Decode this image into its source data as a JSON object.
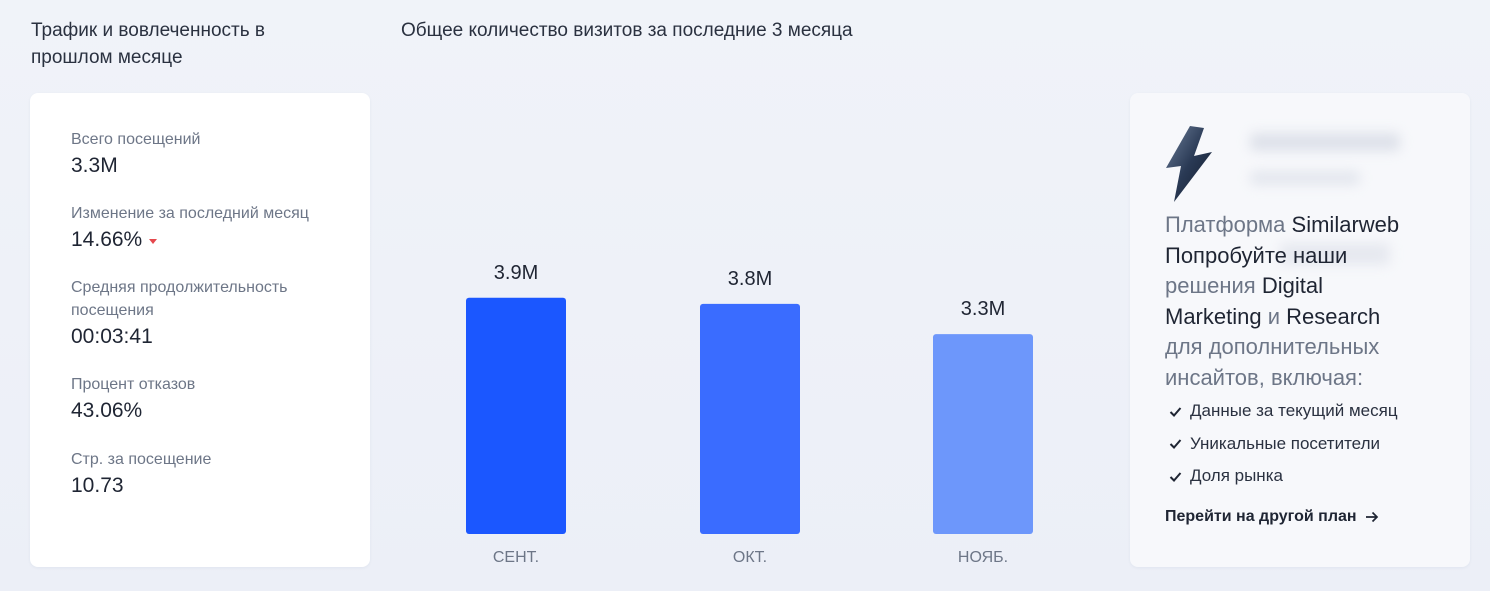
{
  "left_panel": {
    "title": "Трафик и вовлеченность в прошлом месяце",
    "stats": [
      {
        "label": "Всего посещений",
        "value": "3.3M"
      },
      {
        "label": "Изменение за последний месяц",
        "value": "14.66%",
        "trend": "down",
        "trend_color": "#e5484d"
      },
      {
        "label": "Средняя продолжительность посещения",
        "value": "00:03:41"
      },
      {
        "label": "Процент отказов",
        "value": "43.06%"
      },
      {
        "label": "Стр. за посещение",
        "value": "10.73"
      }
    ]
  },
  "chart_title": "Общее количество визитов за последние 3 месяца",
  "chart_data": {
    "type": "bar",
    "title": "Общее количество визитов за последние 3 месяца",
    "categories": [
      "СЕНТ.",
      "ОКТ.",
      "НОЯБ."
    ],
    "values": [
      3.9,
      3.8,
      3.3
    ],
    "value_labels": [
      "3.9M",
      "3.8M",
      "3.3M"
    ],
    "units": "M",
    "colors": [
      "#1b57ff",
      "#3a6cff",
      "#6d97fb"
    ],
    "ylim": [
      0,
      4.4
    ],
    "grid": false,
    "legend": "none",
    "xlabel": "",
    "ylabel": ""
  },
  "promo": {
    "platform_word": "Платформа",
    "brand": "Similarweb",
    "line_try": "Попробуйте наши",
    "line_solutions": "решения",
    "digital": "Digital",
    "marketing": "Marketing",
    "and": "и",
    "research": "Research",
    "line_for": "для дополнительных",
    "line_insights": "инсайтов, включая:",
    "features": [
      "Данные за текущий месяц",
      "Уникальные посетители",
      "Доля рынка"
    ],
    "cta": "Перейти на другой план",
    "icons": {
      "bolt": "lightning-bolt-icon",
      "check": "check-icon",
      "arrow": "arrow-right-icon"
    }
  }
}
